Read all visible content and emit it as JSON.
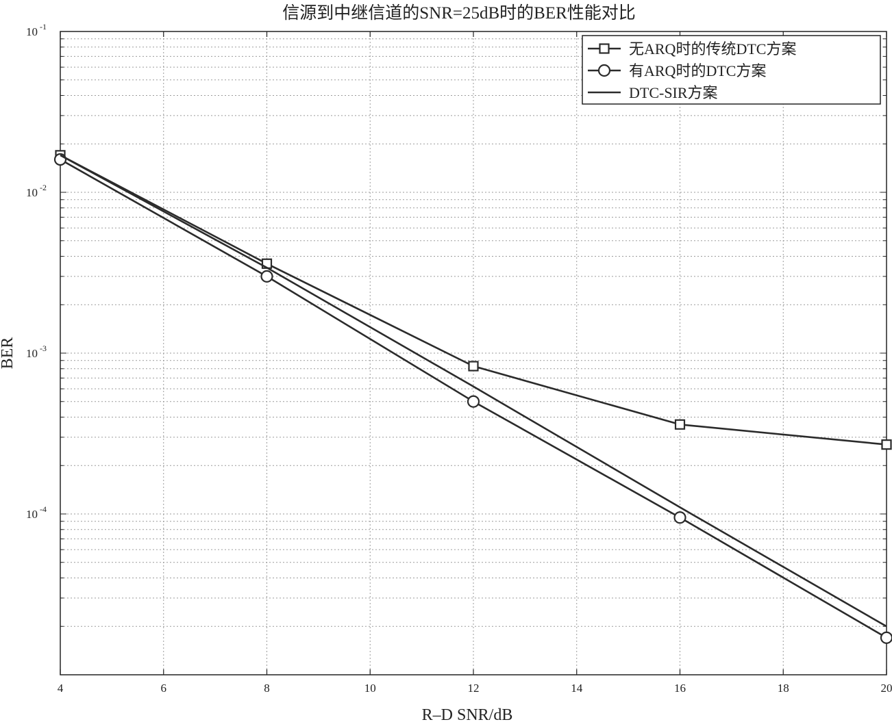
{
  "chart_data": {
    "type": "line",
    "title": "信源到中继信道的SNR=25dB时的BER性能对比",
    "xlabel": "R–D SNR/dB",
    "ylabel": "BER",
    "xlim": [
      4,
      20
    ],
    "ylim": [
      1e-05,
      0.1
    ],
    "yscale": "log",
    "grid": true,
    "legend_position": "top-right",
    "x_ticks": [
      "4",
      "6",
      "8",
      "10",
      "12",
      "14",
      "16",
      "18",
      "20"
    ],
    "y_ticks": [
      {
        "base": "10",
        "exp": "-1"
      },
      {
        "base": "10",
        "exp": "-2"
      },
      {
        "base": "10",
        "exp": "-3"
      },
      {
        "base": "10",
        "exp": "-4"
      }
    ],
    "series": [
      {
        "name": "无ARQ时的传统DTC方案",
        "marker": "square",
        "x": [
          4,
          8,
          12,
          16,
          20
        ],
        "y": [
          0.017,
          0.0036,
          0.00083,
          0.00036,
          0.00027
        ]
      },
      {
        "name": "有ARQ时的DTC方案",
        "marker": "circle",
        "x": [
          4,
          8,
          12,
          16,
          20
        ],
        "y": [
          0.016,
          0.003,
          0.0005,
          9.5e-05,
          1.7e-05
        ]
      },
      {
        "name": "DTC-SIR方案",
        "marker": "none",
        "x": [
          4,
          8,
          12,
          16,
          20
        ],
        "y": [
          0.017,
          0.0034,
          0.00062,
          0.00011,
          2e-05
        ]
      }
    ],
    "colors": {
      "line": "#2b2b2b",
      "grid": "#9a9a9a",
      "axes": "#222222"
    }
  }
}
